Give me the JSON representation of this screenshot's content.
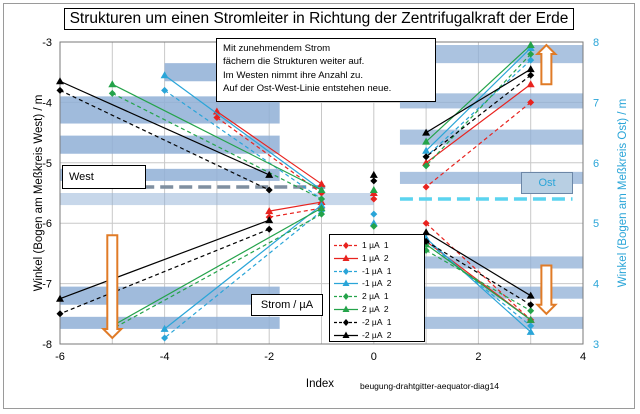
{
  "chart_data": {
    "type": "line",
    "title": "Strukturen um einen Stromleiter in Richtung der Zentrifugalkraft der Erde",
    "xlabel": "Index",
    "ylabel": "Winkel (Bogen am Meßkreis West) / m",
    "ylabel_right": "Winkel (Bogen am Meßkreis Ost) / m",
    "xlim": [
      -6,
      4
    ],
    "ylim": [
      -8,
      -3
    ],
    "ylim_right": [
      3,
      8
    ],
    "x_ticks": [
      "-6",
      "-4",
      "-2",
      "0",
      "2",
      "4"
    ],
    "y_ticks": [
      "-3",
      "-4",
      "-5",
      "-6",
      "-7",
      "-8"
    ],
    "y_ticks_right": [
      "8",
      "7",
      "6",
      "5",
      "4",
      "3"
    ],
    "grid": true,
    "legend_position": "center-bottom",
    "annotation": [
      "Mit zunehmendem Strom",
      "fächern die Strukturen weiter auf.",
      "Im Westen nimmt ihre Anzahl zu.",
      "Auf der Ost-West-Linie entstehen neue."
    ],
    "labels": {
      "west": "West",
      "ost": "Ost",
      "strom": "Strom / µA"
    },
    "footer": "beugung-drahtgitter-aequator-diag14",
    "colors": {
      "band": "#8fafd6",
      "west_dash": "#7f8fa0",
      "east_dash": "#5bd4ef",
      "arrow": "#e07b27"
    },
    "series": [
      {
        "name": "1 µA  1",
        "color": "#e8231f",
        "dashed": true,
        "marker": "diamond",
        "upper": [
          [
            -3,
            -4.25
          ],
          [
            -1,
            -5.5
          ]
        ],
        "lower": [
          [
            -1,
            -5.75
          ],
          [
            -2,
            -5.9
          ]
        ],
        "east_upper": [
          [
            3,
            7.0
          ],
          [
            1,
            5.6
          ]
        ],
        "east_lower": [
          [
            1,
            5.0
          ],
          [
            3,
            3.4
          ]
        ]
      },
      {
        "name": "1 µA  2",
        "color": "#e8231f",
        "dashed": false,
        "marker": "triangle",
        "upper": [
          [
            -3,
            -4.15
          ],
          [
            -1,
            -5.35
          ]
        ],
        "lower": [
          [
            -1,
            -5.65
          ],
          [
            -2,
            -5.8
          ]
        ],
        "east_upper": [
          [
            3,
            7.3
          ],
          [
            1,
            6.0
          ]
        ],
        "east_lower": [
          [
            1,
            4.7
          ],
          [
            3,
            3.4
          ]
        ]
      },
      {
        "name": "-1 µA  1",
        "color": "#2aa5d8",
        "dashed": true,
        "marker": "diamond",
        "upper": [
          [
            -4,
            -3.8
          ],
          [
            -1,
            -5.6
          ]
        ],
        "lower": [
          [
            -1,
            -5.8
          ],
          [
            -4,
            -7.9
          ]
        ],
        "east_upper": [
          [
            3,
            7.7
          ],
          [
            1,
            6.1
          ]
        ],
        "east_lower": [
          [
            1,
            4.7
          ],
          [
            3,
            3.3
          ]
        ]
      },
      {
        "name": "-1 µA  2",
        "color": "#2aa5d8",
        "dashed": false,
        "marker": "triangle",
        "upper": [
          [
            -4,
            -3.55
          ],
          [
            -1,
            -5.45
          ]
        ],
        "lower": [
          [
            -1,
            -5.7
          ],
          [
            -4,
            -7.75
          ]
        ],
        "east_upper": [
          [
            3,
            7.9
          ],
          [
            1,
            6.2
          ]
        ],
        "east_lower": [
          [
            1,
            4.75
          ],
          [
            3,
            3.2
          ]
        ]
      },
      {
        "name": "2 µA  1",
        "color": "#24a34a",
        "dashed": true,
        "marker": "diamond",
        "upper": [
          [
            -5,
            -3.85
          ],
          [
            -1,
            -5.6
          ]
        ],
        "lower": [
          [
            -1,
            -5.85
          ],
          [
            -5,
            -7.75
          ]
        ],
        "east_upper": [
          [
            3,
            7.8
          ],
          [
            1,
            5.95
          ]
        ],
        "east_lower": [
          [
            1,
            4.55
          ],
          [
            3,
            3.55
          ]
        ]
      },
      {
        "name": "2 µA  2",
        "color": "#24a34a",
        "dashed": false,
        "marker": "triangle",
        "upper": [
          [
            -5,
            -3.7
          ],
          [
            -1,
            -5.45
          ]
        ],
        "lower": [
          [
            -1,
            -5.75
          ],
          [
            -5,
            -7.7
          ]
        ],
        "east_upper": [
          [
            3,
            7.95
          ],
          [
            1,
            6.35
          ]
        ],
        "east_lower": [
          [
            1,
            4.65
          ],
          [
            3,
            3.4
          ]
        ]
      },
      {
        "name": "-2 µA  1",
        "color": "#000000",
        "dashed": true,
        "marker": "diamond",
        "upper": [
          [
            -6,
            -3.8
          ],
          [
            -2,
            -5.45
          ]
        ],
        "lower": [
          [
            -2,
            -6.1
          ],
          [
            -6,
            -7.5
          ]
        ],
        "east_upper": [
          [
            3,
            7.45
          ],
          [
            1,
            6.1
          ]
        ],
        "east_lower": [
          [
            1,
            4.7
          ],
          [
            3,
            3.65
          ]
        ]
      },
      {
        "name": "-2 µA  2",
        "color": "#000000",
        "dashed": false,
        "marker": "triangle",
        "upper": [
          [
            -6,
            -3.65
          ],
          [
            -2,
            -5.2
          ]
        ],
        "lower": [
          [
            -2,
            -5.95
          ],
          [
            -6,
            -7.25
          ]
        ],
        "east_upper": [
          [
            3,
            7.55
          ],
          [
            1,
            6.5
          ]
        ],
        "east_lower": [
          [
            1,
            4.85
          ],
          [
            3,
            3.8
          ]
        ]
      }
    ],
    "center_points": {
      "x": 0,
      "values": [
        -5.6,
        -5.5,
        -5.85,
        -6.0,
        -6.05,
        -5.45,
        -5.3,
        -5.2
      ]
    }
  }
}
